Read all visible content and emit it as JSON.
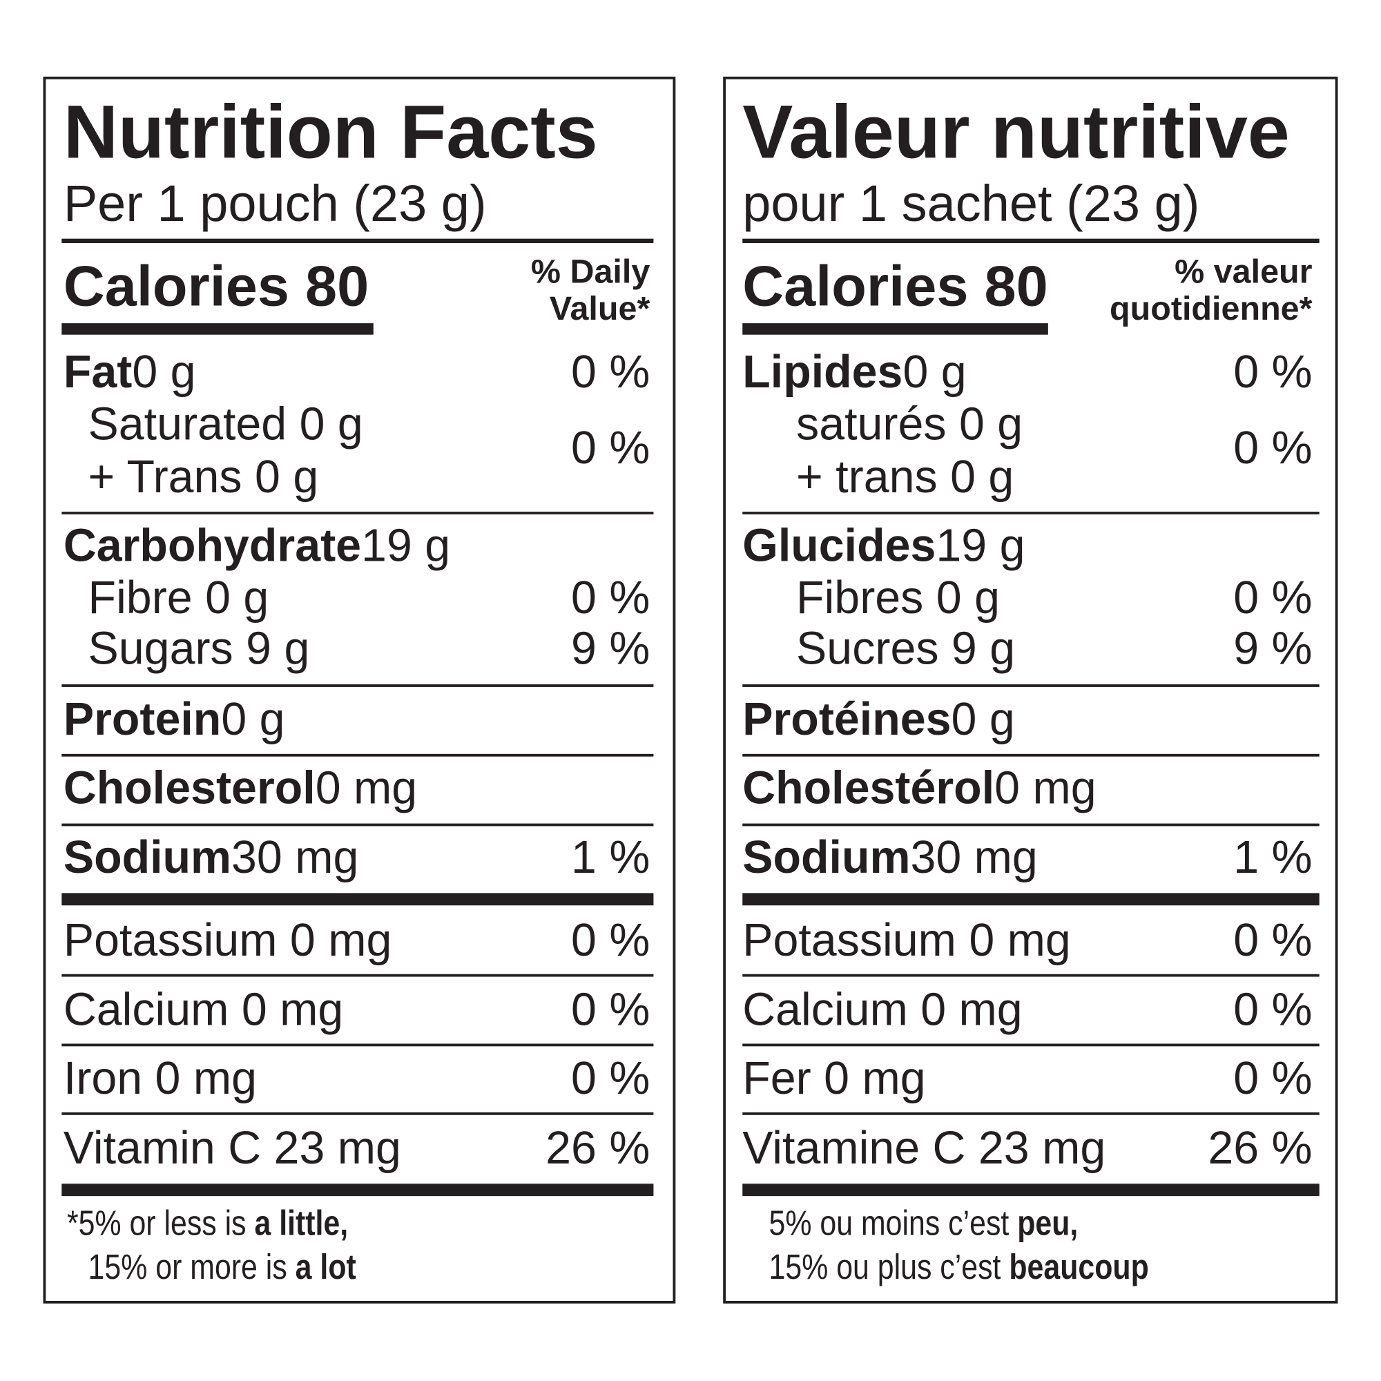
{
  "panels": [
    {
      "title": "Nutrition Facts",
      "serving": "Per 1 pouch (23 g)",
      "calories": "Calories 80",
      "dv_header": [
        "% Daily",
        "Value*"
      ],
      "fat": {
        "name": "Fat",
        "amount": "0 g",
        "dv": "0 %"
      },
      "saturated_trans": {
        "lines": [
          "Saturated 0 g",
          "+ Trans 0 g"
        ],
        "dv": "0 %"
      },
      "carbohydrate": {
        "name": "Carbohydrate",
        "amount": "19 g"
      },
      "fibre": {
        "label": "Fibre 0 g",
        "dv": "0 %"
      },
      "sugars": {
        "label": "Sugars 9 g",
        "dv": "9 %"
      },
      "protein": {
        "name": "Protein",
        "amount": "0 g"
      },
      "cholesterol": {
        "name": "Cholesterol",
        "amount": "0 mg"
      },
      "sodium": {
        "name": "Sodium",
        "amount": "30 mg",
        "dv": "1 %"
      },
      "minerals": [
        {
          "label": "Potassium 0 mg",
          "dv": "0 %"
        },
        {
          "label": "Calcium 0 mg",
          "dv": "0 %"
        },
        {
          "label": "Iron 0 mg",
          "dv": "0 %"
        },
        {
          "label": "Vitamin C 23 mg",
          "dv": "26 %"
        }
      ],
      "footnote": [
        {
          "text": "*5% or less is ",
          "bold": "a little,"
        },
        {
          "text": "15% or more is ",
          "bold": "a lot"
        }
      ]
    },
    {
      "title": "Valeur nutritive",
      "serving": "pour 1 sachet (23 g)",
      "calories": "Calories 80",
      "dv_header": [
        "% valeur",
        "quotidienne*"
      ],
      "fat": {
        "name": "Lipides",
        "amount": "0 g",
        "dv": "0 %"
      },
      "saturated_trans": {
        "lines": [
          "saturés 0 g",
          "+ trans 0 g"
        ],
        "dv": "0 %"
      },
      "carbohydrate": {
        "name": "Glucides",
        "amount": "19 g"
      },
      "fibre": {
        "label": "Fibres 0 g",
        "dv": "0 %"
      },
      "sugars": {
        "label": "Sucres 9 g",
        "dv": "9 %"
      },
      "protein": {
        "name": "Protéines",
        "amount": "0 g"
      },
      "cholesterol": {
        "name": "Cholestérol",
        "amount": "0 mg"
      },
      "sodium": {
        "name": "Sodium",
        "amount": "30 mg",
        "dv": "1 %"
      },
      "minerals": [
        {
          "label": "Potassium 0 mg",
          "dv": "0 %"
        },
        {
          "label": "Calcium 0 mg",
          "dv": "0 %"
        },
        {
          "label": "Fer 0 mg",
          "dv": "0 %"
        },
        {
          "label": "Vitamine C 23 mg",
          "dv": "26 %"
        }
      ],
      "footnote": [
        {
          "text": "5% ou moins c’est ",
          "bold": "peu,"
        },
        {
          "text": "15% ou plus c’est ",
          "bold": "beaucoup"
        }
      ]
    }
  ]
}
